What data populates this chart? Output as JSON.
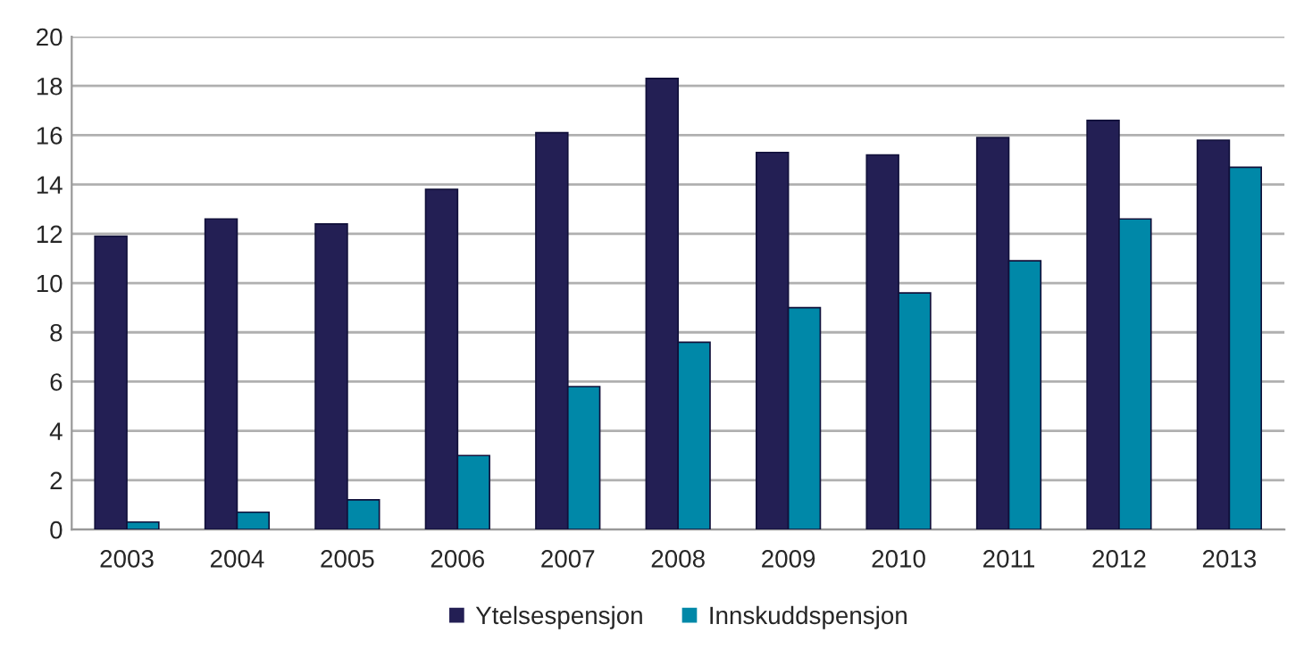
{
  "chart_data": {
    "type": "bar",
    "categories": [
      "2003",
      "2004",
      "2005",
      "2006",
      "2007",
      "2008",
      "2009",
      "2010",
      "2011",
      "2012",
      "2013"
    ],
    "series": [
      {
        "name": "Ytelsespensjon",
        "color": "#231f54",
        "values": [
          11.9,
          12.6,
          12.4,
          13.8,
          16.1,
          18.3,
          15.3,
          15.2,
          15.9,
          16.6,
          15.8
        ]
      },
      {
        "name": "Innskuddspensjon",
        "color": "#0088a8",
        "values": [
          0.3,
          0.7,
          1.2,
          3.0,
          5.8,
          7.6,
          9.0,
          9.6,
          10.9,
          12.6,
          14.7
        ]
      }
    ],
    "ylim": [
      0,
      20
    ],
    "yticks": [
      0,
      2,
      4,
      6,
      8,
      10,
      12,
      14,
      16,
      18,
      20
    ],
    "grid": "y",
    "legend": "bottom"
  }
}
